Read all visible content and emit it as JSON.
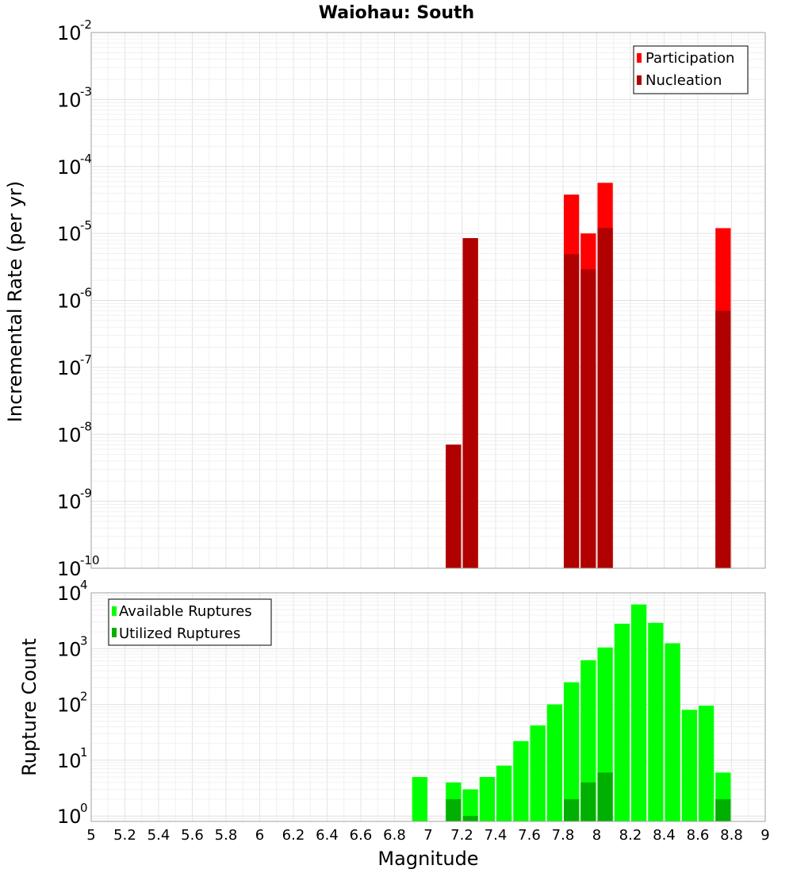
{
  "chart_data": [
    {
      "type": "bar",
      "title": "Waiohau: South",
      "ylabel": "Incremental Rate (per yr)",
      "xlabel": "",
      "yscale": "log",
      "xlim": [
        5,
        9
      ],
      "ylim": [
        1e-10,
        0.01
      ],
      "y_tick_exponents": [
        -10,
        -9,
        -8,
        -7,
        -6,
        -5,
        -4,
        -3,
        -2
      ],
      "y_tick_base": "10",
      "grid": true,
      "legend_position": "top-right",
      "bar_width": 0.1,
      "series": [
        {
          "name": "Participation",
          "color": "#ff0000",
          "points": [
            {
              "x": 7.15,
              "y": 7e-09
            },
            {
              "x": 7.25,
              "y": 8.5e-06
            },
            {
              "x": 7.85,
              "y": 3.8e-05
            },
            {
              "x": 7.95,
              "y": 1e-05
            },
            {
              "x": 8.05,
              "y": 5.7e-05
            },
            {
              "x": 8.75,
              "y": 1.2e-05
            }
          ]
        },
        {
          "name": "Nucleation",
          "color": "#b00000",
          "points": [
            {
              "x": 7.15,
              "y": 7e-09
            },
            {
              "x": 7.25,
              "y": 8.5e-06
            },
            {
              "x": 7.85,
              "y": 4.9e-06
            },
            {
              "x": 7.95,
              "y": 2.9e-06
            },
            {
              "x": 8.05,
              "y": 1.2e-05
            },
            {
              "x": 8.75,
              "y": 7e-07
            }
          ]
        }
      ]
    },
    {
      "type": "bar",
      "title": "",
      "ylabel": "Rupture Count",
      "xlabel": "Magnitude",
      "yscale": "log",
      "xlim": [
        5,
        9
      ],
      "ylim": [
        0.8,
        10000.0
      ],
      "y_tick_exponents": [
        0,
        1,
        2,
        3,
        4
      ],
      "y_tick_base": "10",
      "x_ticks": [
        "5",
        "5.2",
        "5.4",
        "5.6",
        "5.8",
        "6",
        "6.2",
        "6.4",
        "6.6",
        "6.8",
        "7",
        "7.2",
        "7.4",
        "7.6",
        "7.8",
        "8",
        "8.2",
        "8.4",
        "8.6",
        "8.8",
        "9"
      ],
      "grid": true,
      "legend_position": "top-left",
      "bar_width": 0.1,
      "series": [
        {
          "name": "Available Ruptures",
          "color": "#00ff00",
          "points": [
            {
              "x": 6.95,
              "y": 5
            },
            {
              "x": 7.15,
              "y": 4
            },
            {
              "x": 7.25,
              "y": 3
            },
            {
              "x": 7.35,
              "y": 5
            },
            {
              "x": 7.45,
              "y": 8
            },
            {
              "x": 7.55,
              "y": 22
            },
            {
              "x": 7.65,
              "y": 42
            },
            {
              "x": 7.75,
              "y": 100
            },
            {
              "x": 7.85,
              "y": 250
            },
            {
              "x": 7.95,
              "y": 620
            },
            {
              "x": 8.05,
              "y": 1050
            },
            {
              "x": 8.15,
              "y": 2800
            },
            {
              "x": 8.25,
              "y": 6200
            },
            {
              "x": 8.35,
              "y": 2900
            },
            {
              "x": 8.45,
              "y": 1250
            },
            {
              "x": 8.55,
              "y": 80
            },
            {
              "x": 8.65,
              "y": 95
            },
            {
              "x": 8.75,
              "y": 6
            }
          ]
        },
        {
          "name": "Utilized Ruptures",
          "color": "#00b000",
          "points": [
            {
              "x": 7.15,
              "y": 2
            },
            {
              "x": 7.25,
              "y": 1
            },
            {
              "x": 7.85,
              "y": 2
            },
            {
              "x": 7.95,
              "y": 4
            },
            {
              "x": 8.05,
              "y": 6
            },
            {
              "x": 8.75,
              "y": 2
            }
          ]
        }
      ]
    }
  ]
}
